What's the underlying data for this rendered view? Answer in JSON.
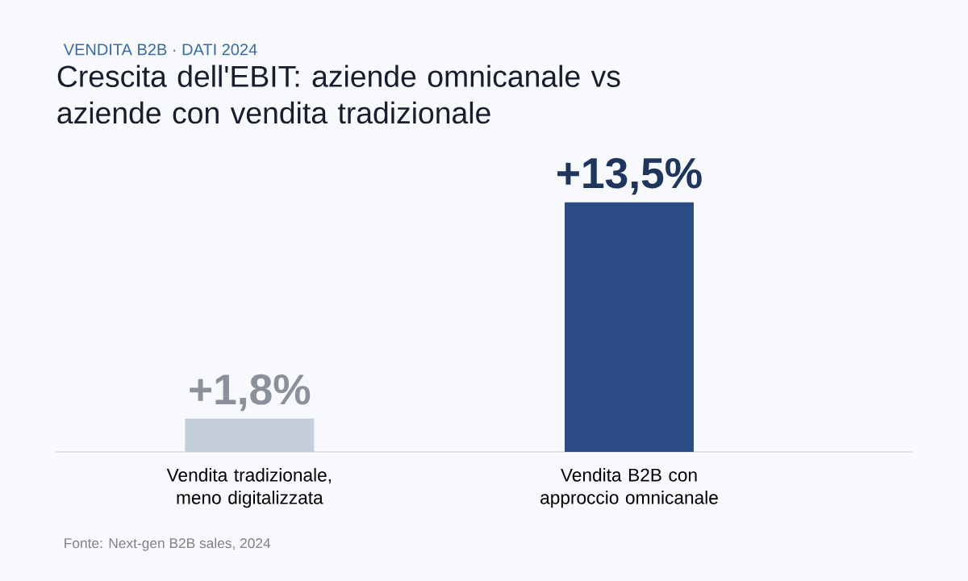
{
  "chart_data": {
    "type": "bar",
    "subtitle": "VENDITA B2B · DATI 2024",
    "title": "Crescita dell'EBIT: aziende omnicanale vs aziende con vendita tradizionale",
    "categories": [
      "Vendita tradizionale, meno digitalizzata",
      "Vendita B2B con approccio omnicanale"
    ],
    "values": [
      1.8,
      13.5
    ],
    "colors": [
      "#c5cfdc",
      "#2b4c85"
    ],
    "value_labels": [
      "+1,8%",
      "+13,5%"
    ],
    "annotations": [
      "Fonte: Next-gen B2B sales, 2024"
    ]
  }
}
